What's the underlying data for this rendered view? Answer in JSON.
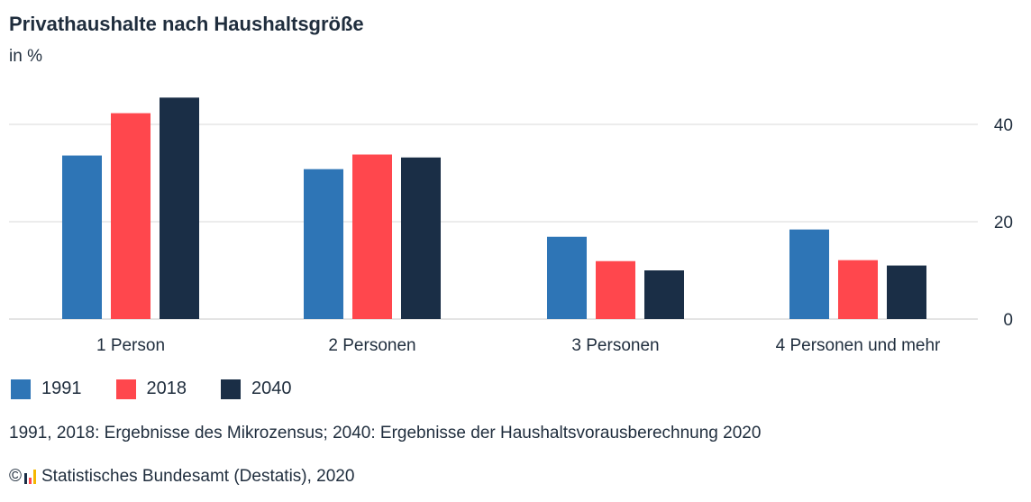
{
  "title": "Privathaushalte nach Haushaltsgröße",
  "unit": "in %",
  "note": "1991, 2018: Ergebnisse des Mikrozensus; 2040: Ergebnisse der Haushaltsvorausberechnung 2020",
  "source": {
    "copyright_symbol": "©",
    "text": "Statistisches Bundesamt (Destatis), 2020"
  },
  "colors": {
    "series_1991": "#2e75b6",
    "series_2018": "#ff474d",
    "series_2040": "#1a2e46",
    "grid": "#d9d9d9",
    "text": "#1f2d3d"
  },
  "chart_data": {
    "type": "bar",
    "title": "Privathaushalte nach Haushaltsgröße",
    "ylabel": "in %",
    "categories": [
      "1 Person",
      "2 Personen",
      "3 Personen",
      "4 Personen und mehr"
    ],
    "series": [
      {
        "name": "1991",
        "values": [
          33.6,
          30.8,
          16.9,
          18.4
        ]
      },
      {
        "name": "2018",
        "values": [
          42.3,
          33.8,
          11.9,
          12.1
        ]
      },
      {
        "name": "2040",
        "values": [
          45.5,
          33.2,
          10.0,
          11.0
        ]
      }
    ],
    "yticks": [
      0,
      20,
      40
    ],
    "ytick_labels": [
      "0",
      "20",
      "40"
    ],
    "ylim": [
      0,
      50
    ],
    "grid": true,
    "y_axis_side": "right",
    "legend_position": "bottom-left"
  }
}
